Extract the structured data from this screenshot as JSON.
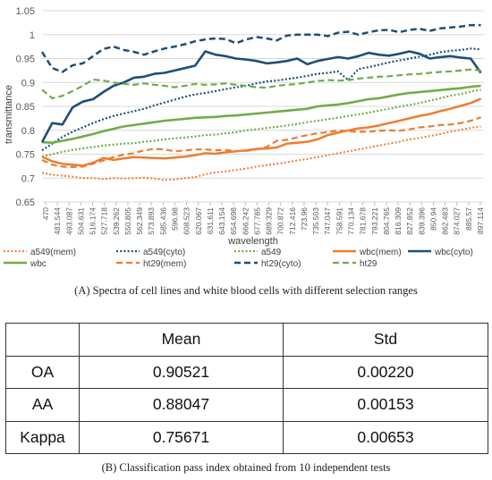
{
  "figure_a_caption": "(A) Spectra of cell lines and white blood cells with different selection ranges",
  "figure_b_caption": "(B) Classification pass index obtained from 10 independent tests",
  "table": {
    "headers": [
      "",
      "Mean",
      "Std"
    ],
    "rows": [
      {
        "label": "OA",
        "mean": "0.90521",
        "std": "0.00220"
      },
      {
        "label": "AA",
        "mean": "0.88047",
        "std": "0.00153"
      },
      {
        "label": "Kappa",
        "mean": "0.75671",
        "std": "0.00653"
      }
    ]
  },
  "chart_data": {
    "type": "line",
    "xlabel": "wavelength",
    "ylabel": "transmittance",
    "ylim": [
      0.65,
      1.05
    ],
    "yticks": [
      "0.65",
      "0.7",
      "0.75",
      "0.8",
      "0.85",
      "0.9",
      "0.95",
      "1",
      "1.05"
    ],
    "xlim": [
      470,
      903
    ],
    "xticks": [
      "470",
      "481.544",
      "493.087",
      "504.631",
      "516.174",
      "527.718",
      "539.262",
      "550.805",
      "562.349",
      "573.893",
      "585.436",
      "596.98",
      "608.523",
      "620.067",
      "631.611",
      "643.154",
      "654.698",
      "666.242",
      "677.785",
      "689.329",
      "700.872",
      "712.416",
      "723.96",
      "735.503",
      "747.047",
      "758.591",
      "770.134",
      "781.678",
      "793.221",
      "804.765",
      "816.309",
      "827.852",
      "839.396",
      "850.94",
      "862.483",
      "874.027",
      "885.57",
      "897.114"
    ],
    "grid": "horizontal",
    "legend_position": "bottom",
    "x": [
      470,
      480,
      490,
      500,
      510,
      520,
      530,
      540,
      550,
      560,
      570,
      580,
      590,
      600,
      610,
      620,
      630,
      640,
      650,
      660,
      670,
      680,
      690,
      700,
      710,
      720,
      730,
      740,
      750,
      760,
      770,
      780,
      790,
      800,
      810,
      820,
      830,
      840,
      850,
      860,
      870,
      880,
      890,
      900
    ],
    "series": [
      {
        "name": "a549(mem)",
        "color": "#ed7d31",
        "style": "dotted",
        "width": 2,
        "values": [
          0.711,
          0.707,
          0.705,
          0.703,
          0.7,
          0.7,
          0.698,
          0.7,
          0.699,
          0.7,
          0.701,
          0.699,
          0.696,
          0.697,
          0.7,
          0.702,
          0.708,
          0.712,
          0.714,
          0.717,
          0.72,
          0.724,
          0.727,
          0.73,
          0.733,
          0.737,
          0.74,
          0.744,
          0.748,
          0.752,
          0.756,
          0.76,
          0.764,
          0.768,
          0.772,
          0.776,
          0.781,
          0.784,
          0.788,
          0.792,
          0.797,
          0.801,
          0.805,
          0.808
        ]
      },
      {
        "name": "a549(cyto)",
        "color": "#1f4e79",
        "style": "dotted",
        "width": 2.2,
        "values": [
          0.758,
          0.772,
          0.786,
          0.797,
          0.806,
          0.815,
          0.823,
          0.83,
          0.835,
          0.84,
          0.845,
          0.852,
          0.858,
          0.864,
          0.87,
          0.875,
          0.878,
          0.882,
          0.886,
          0.89,
          0.893,
          0.898,
          0.902,
          0.904,
          0.907,
          0.91,
          0.914,
          0.918,
          0.92,
          0.923,
          0.905,
          0.928,
          0.932,
          0.937,
          0.942,
          0.946,
          0.95,
          0.954,
          0.958,
          0.963,
          0.966,
          0.968,
          0.971,
          0.969
        ]
      },
      {
        "name": "a549",
        "color": "#70ad47",
        "style": "dotted",
        "width": 2.2,
        "values": [
          0.745,
          0.75,
          0.755,
          0.759,
          0.762,
          0.765,
          0.768,
          0.77,
          0.772,
          0.773,
          0.776,
          0.778,
          0.781,
          0.783,
          0.785,
          0.787,
          0.79,
          0.791,
          0.794,
          0.796,
          0.8,
          0.802,
          0.805,
          0.807,
          0.81,
          0.813,
          0.817,
          0.82,
          0.823,
          0.826,
          0.83,
          0.833,
          0.837,
          0.841,
          0.845,
          0.849,
          0.853,
          0.857,
          0.862,
          0.867,
          0.872,
          0.876,
          0.881,
          0.885
        ]
      },
      {
        "name": "wbc(mem)",
        "color": "#ed7d31",
        "style": "solid",
        "width": 2.5,
        "values": [
          0.745,
          0.735,
          0.73,
          0.728,
          0.726,
          0.732,
          0.742,
          0.738,
          0.741,
          0.744,
          0.743,
          0.742,
          0.741,
          0.743,
          0.745,
          0.748,
          0.752,
          0.751,
          0.754,
          0.756,
          0.758,
          0.761,
          0.762,
          0.764,
          0.772,
          0.774,
          0.776,
          0.781,
          0.79,
          0.795,
          0.8,
          0.804,
          0.806,
          0.81,
          0.815,
          0.82,
          0.825,
          0.83,
          0.834,
          0.84,
          0.845,
          0.851,
          0.857,
          0.866
        ]
      },
      {
        "name": "ht29(mem)",
        "color": "#ed7d31",
        "style": "dashed",
        "width": 2.2,
        "values": [
          0.738,
          0.728,
          0.724,
          0.723,
          0.724,
          0.73,
          0.737,
          0.744,
          0.749,
          0.752,
          0.758,
          0.761,
          0.76,
          0.756,
          0.758,
          0.76,
          0.76,
          0.758,
          0.759,
          0.757,
          0.757,
          0.76,
          0.765,
          0.778,
          0.78,
          0.785,
          0.79,
          0.794,
          0.796,
          0.8,
          0.798,
          0.797,
          0.797,
          0.799,
          0.8,
          0.799,
          0.802,
          0.806,
          0.808,
          0.811,
          0.812,
          0.815,
          0.82,
          0.827
        ]
      },
      {
        "name": "ht29(cyto)",
        "color": "#1f4e79",
        "style": "dashed",
        "width": 2.5,
        "values": [
          0.964,
          0.93,
          0.922,
          0.936,
          0.94,
          0.955,
          0.97,
          0.975,
          0.968,
          0.964,
          0.958,
          0.965,
          0.971,
          0.975,
          0.98,
          0.986,
          0.99,
          0.992,
          0.991,
          0.982,
          0.99,
          0.995,
          0.992,
          0.988,
          0.998,
          1.0,
          1.0,
          1.0,
          0.997,
          1.004,
          1.006,
          1.0,
          1.005,
          1.009,
          1.01,
          1.005,
          1.01,
          1.012,
          1.008,
          1.013,
          1.015,
          1.017,
          1.02,
          1.02
        ]
      },
      {
        "name": "wbc",
        "color": "#70ad47",
        "style": "solid",
        "width": 2.6,
        "values": [
          0.775,
          0.774,
          0.778,
          0.782,
          0.787,
          0.792,
          0.798,
          0.803,
          0.808,
          0.811,
          0.814,
          0.817,
          0.82,
          0.822,
          0.824,
          0.826,
          0.827,
          0.828,
          0.83,
          0.831,
          0.833,
          0.835,
          0.837,
          0.839,
          0.841,
          0.843,
          0.845,
          0.85,
          0.852,
          0.854,
          0.857,
          0.861,
          0.865,
          0.867,
          0.871,
          0.875,
          0.878,
          0.88,
          0.882,
          0.884,
          0.886,
          0.888,
          0.891,
          0.893
        ]
      },
      {
        "name": "wbc(cyto)",
        "color": "#1f4e79",
        "style": "solid",
        "width": 2.6,
        "values": [
          0.775,
          0.815,
          0.812,
          0.848,
          0.86,
          0.865,
          0.88,
          0.893,
          0.9,
          0.91,
          0.912,
          0.918,
          0.92,
          0.925,
          0.93,
          0.935,
          0.965,
          0.958,
          0.955,
          0.95,
          0.948,
          0.945,
          0.94,
          0.942,
          0.945,
          0.95,
          0.938,
          0.945,
          0.949,
          0.953,
          0.95,
          0.955,
          0.962,
          0.958,
          0.956,
          0.96,
          0.965,
          0.96,
          0.95,
          0.953,
          0.955,
          0.952,
          0.95,
          0.92
        ]
      },
      {
        "name": "ht29",
        "color": "#70ad47",
        "style": "dashed",
        "width": 2.2,
        "values": [
          0.885,
          0.867,
          0.872,
          0.882,
          0.893,
          0.906,
          0.904,
          0.9,
          0.897,
          0.895,
          0.898,
          0.895,
          0.893,
          0.89,
          0.893,
          0.897,
          0.895,
          0.896,
          0.898,
          0.895,
          0.893,
          0.89,
          0.889,
          0.893,
          0.895,
          0.897,
          0.9,
          0.903,
          0.905,
          0.904,
          0.905,
          0.908,
          0.91,
          0.912,
          0.913,
          0.915,
          0.917,
          0.918,
          0.92,
          0.922,
          0.923,
          0.925,
          0.927,
          0.925
        ]
      }
    ],
    "legend_order": [
      "a549(mem)",
      "a549(cyto)",
      "a549",
      "wbc(mem)",
      "wbc(cyto)",
      "wbc",
      "ht29(mem)",
      "ht29(cyto)",
      "ht29"
    ]
  }
}
